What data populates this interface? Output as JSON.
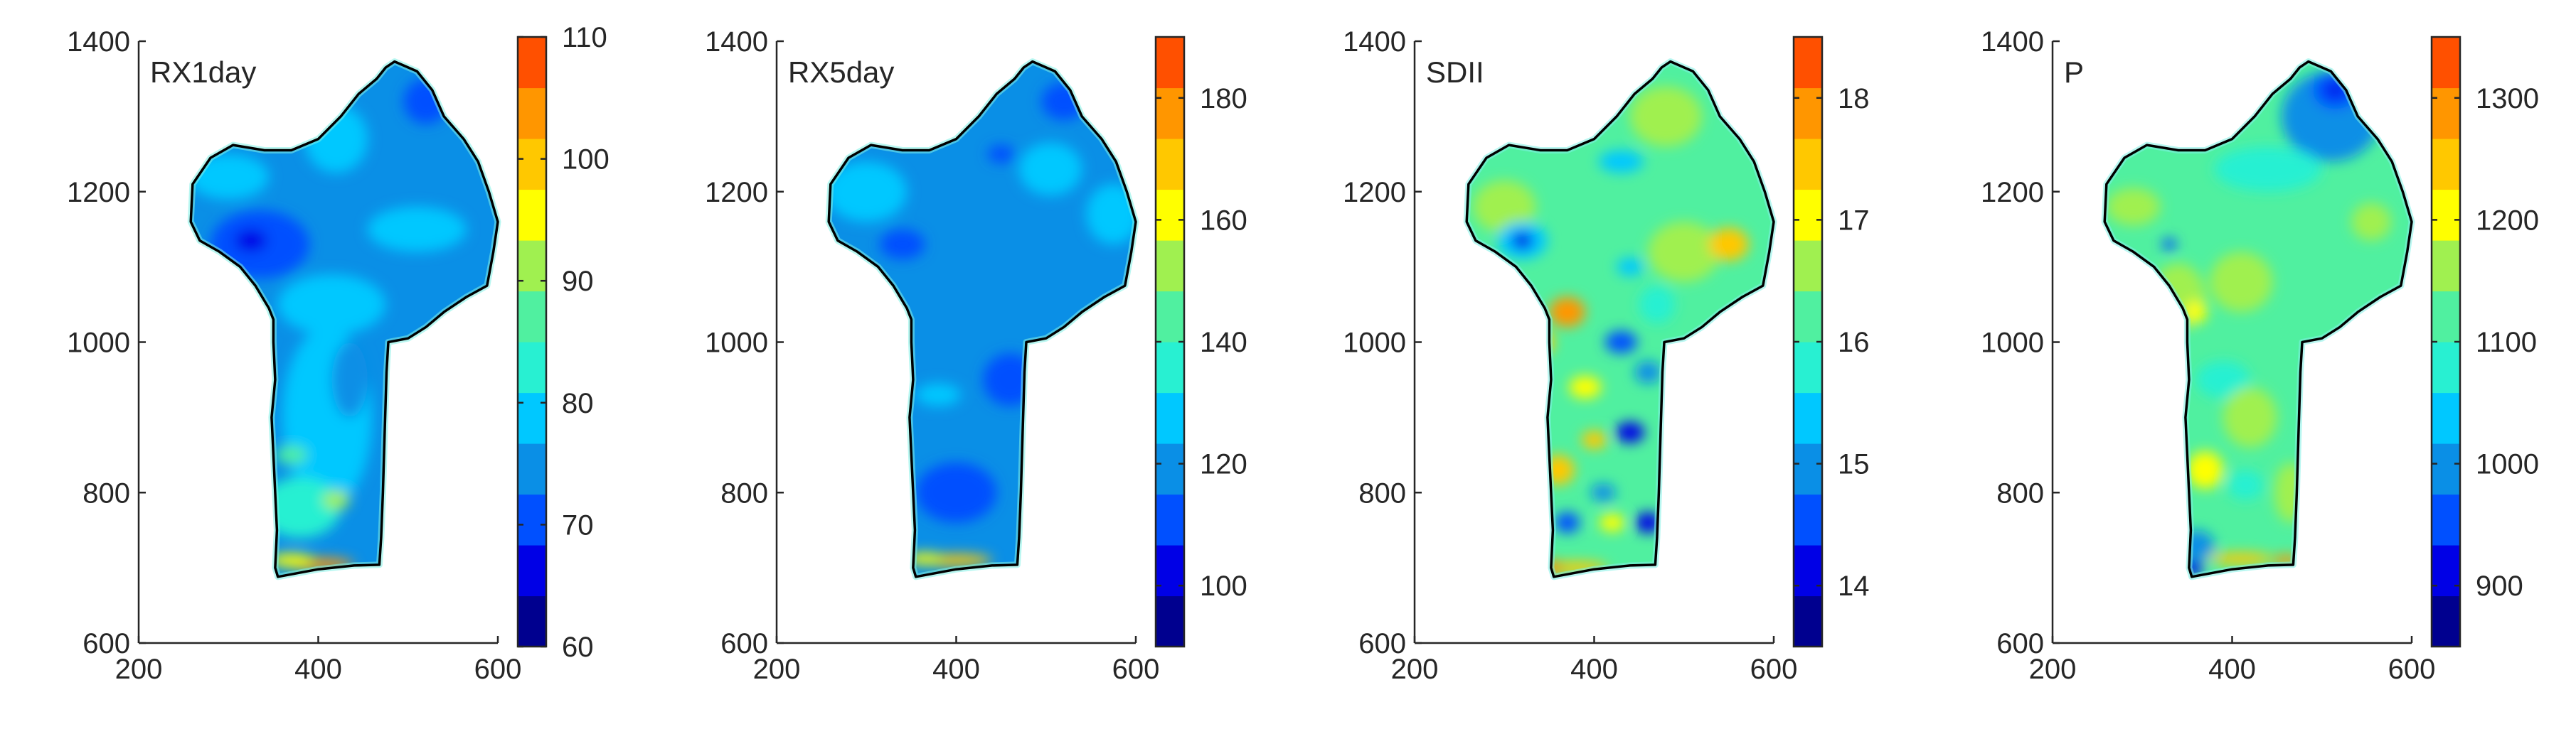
{
  "figure": {
    "panel_count": 4,
    "colormap": [
      "#00008f",
      "#0000e6",
      "#0050ff",
      "#0a8fe6",
      "#00c8ff",
      "#28f0d2",
      "#50f0a0",
      "#a0f050",
      "#ffff00",
      "#ffc800",
      "#ff9600",
      "#ff5000"
    ],
    "outline_color": "#000000",
    "map_fill_base": "#0a8fe6"
  },
  "chart_data": [
    {
      "type": "heatmap",
      "title": "RX1day",
      "xlim": [
        200,
        600
      ],
      "ylim": [
        600,
        1400
      ],
      "xticks": [
        200,
        400,
        600
      ],
      "yticks": [
        600,
        800,
        1000,
        1200,
        1400
      ],
      "xticklabels": [
        "200",
        "400",
        "600"
      ],
      "yticklabels": [
        "600",
        "800",
        "1000",
        "1200",
        "1400"
      ],
      "colorbar": {
        "range": [
          60,
          110
        ],
        "ticks": [
          60,
          70,
          80,
          90,
          100,
          110
        ],
        "ticklabels": [
          "60",
          "70",
          "80",
          "90",
          "100",
          "110"
        ]
      },
      "base_color": "#0a8fe6",
      "blobs": [
        {
          "x": 335,
          "y": 1130,
          "rx": 55,
          "ry": 45,
          "c": "#0050ff"
        },
        {
          "x": 325,
          "y": 1135,
          "rx": 18,
          "ry": 15,
          "c": "#0000e6"
        },
        {
          "x": 300,
          "y": 1220,
          "rx": 45,
          "ry": 30,
          "c": "#00c8ff"
        },
        {
          "x": 420,
          "y": 1270,
          "rx": 35,
          "ry": 45,
          "c": "#00c8ff"
        },
        {
          "x": 510,
          "y": 1150,
          "rx": 55,
          "ry": 30,
          "c": "#00c8ff"
        },
        {
          "x": 520,
          "y": 1320,
          "rx": 25,
          "ry": 30,
          "c": "#0050ff"
        },
        {
          "x": 415,
          "y": 1050,
          "rx": 60,
          "ry": 40,
          "c": "#00c8ff"
        },
        {
          "x": 410,
          "y": 900,
          "rx": 50,
          "ry": 120,
          "c": "#00c8ff"
        },
        {
          "x": 380,
          "y": 780,
          "rx": 45,
          "ry": 40,
          "c": "#28f0d2"
        },
        {
          "x": 370,
          "y": 850,
          "rx": 18,
          "ry": 12,
          "c": "#50f0a0"
        },
        {
          "x": 420,
          "y": 790,
          "rx": 15,
          "ry": 12,
          "c": "#a0f050"
        },
        {
          "x": 400,
          "y": 705,
          "rx": 40,
          "ry": 8,
          "c": "#ff9600"
        },
        {
          "x": 370,
          "y": 710,
          "rx": 25,
          "ry": 9,
          "c": "#ffff00"
        },
        {
          "x": 435,
          "y": 950,
          "rx": 20,
          "ry": 50,
          "c": "#0a8fe6"
        }
      ]
    },
    {
      "type": "heatmap",
      "title": "RX5day",
      "xlim": [
        200,
        600
      ],
      "ylim": [
        600,
        1400
      ],
      "xticks": [
        200,
        400,
        600
      ],
      "yticks": [
        600,
        800,
        1000,
        1200,
        1400
      ],
      "xticklabels": [
        "200",
        "400",
        "600"
      ],
      "yticklabels": [
        "600",
        "800",
        "1000",
        "1200",
        "1400"
      ],
      "colorbar": {
        "range": [
          90,
          190
        ],
        "ticks": [
          100,
          120,
          140,
          160,
          180
        ],
        "ticklabels": [
          "100",
          "120",
          "140",
          "160",
          "180"
        ]
      },
      "base_color": "#0a8fe6",
      "blobs": [
        {
          "x": 300,
          "y": 1200,
          "rx": 45,
          "ry": 40,
          "c": "#00c8ff"
        },
        {
          "x": 340,
          "y": 1130,
          "rx": 25,
          "ry": 20,
          "c": "#0050ff"
        },
        {
          "x": 505,
          "y": 1230,
          "rx": 35,
          "ry": 35,
          "c": "#00c8ff"
        },
        {
          "x": 575,
          "y": 1170,
          "rx": 30,
          "ry": 40,
          "c": "#00c8ff"
        },
        {
          "x": 520,
          "y": 1320,
          "rx": 25,
          "ry": 25,
          "c": "#0050ff"
        },
        {
          "x": 460,
          "y": 950,
          "rx": 30,
          "ry": 35,
          "c": "#0050ff"
        },
        {
          "x": 400,
          "y": 800,
          "rx": 45,
          "ry": 40,
          "c": "#0050ff"
        },
        {
          "x": 380,
          "y": 930,
          "rx": 25,
          "ry": 15,
          "c": "#00c8ff"
        },
        {
          "x": 400,
          "y": 710,
          "rx": 40,
          "ry": 8,
          "c": "#ffc800"
        },
        {
          "x": 365,
          "y": 712,
          "rx": 20,
          "ry": 8,
          "c": "#ffff00"
        },
        {
          "x": 450,
          "y": 1250,
          "rx": 15,
          "ry": 12,
          "c": "#0050ff"
        }
      ]
    },
    {
      "type": "heatmap",
      "title": "SDII",
      "xlim": [
        200,
        600
      ],
      "ylim": [
        600,
        1400
      ],
      "xticks": [
        200,
        400,
        600
      ],
      "yticks": [
        600,
        800,
        1000,
        1200,
        1400
      ],
      "xticklabels": [
        "200",
        "400",
        "600"
      ],
      "yticklabels": [
        "600",
        "800",
        "1000",
        "1200",
        "1400"
      ],
      "colorbar": {
        "range": [
          13.5,
          18.5
        ],
        "ticks": [
          14,
          15,
          16,
          17,
          18
        ],
        "ticklabels": [
          "14",
          "15",
          "16",
          "17",
          "18"
        ]
      },
      "base_color": "#50f0a0",
      "blobs": [
        {
          "x": 480,
          "y": 1300,
          "rx": 40,
          "ry": 40,
          "c": "#a0f050"
        },
        {
          "x": 500,
          "y": 1120,
          "rx": 40,
          "ry": 40,
          "c": "#a0f050"
        },
        {
          "x": 300,
          "y": 1180,
          "rx": 35,
          "ry": 35,
          "c": "#a0f050"
        },
        {
          "x": 320,
          "y": 1135,
          "rx": 28,
          "ry": 25,
          "c": "#00c8ff"
        },
        {
          "x": 320,
          "y": 1135,
          "rx": 12,
          "ry": 12,
          "c": "#0000e6"
        },
        {
          "x": 430,
          "y": 1240,
          "rx": 25,
          "ry": 15,
          "c": "#00c8ff"
        },
        {
          "x": 550,
          "y": 1130,
          "rx": 22,
          "ry": 22,
          "c": "#ffc800"
        },
        {
          "x": 440,
          "y": 1100,
          "rx": 15,
          "ry": 12,
          "c": "#00c8ff"
        },
        {
          "x": 370,
          "y": 1040,
          "rx": 20,
          "ry": 20,
          "c": "#ff9600"
        },
        {
          "x": 340,
          "y": 1000,
          "rx": 15,
          "ry": 18,
          "c": "#ffc800"
        },
        {
          "x": 430,
          "y": 1000,
          "rx": 18,
          "ry": 15,
          "c": "#0050ff"
        },
        {
          "x": 460,
          "y": 960,
          "rx": 15,
          "ry": 15,
          "c": "#0a8fe6"
        },
        {
          "x": 390,
          "y": 940,
          "rx": 18,
          "ry": 15,
          "c": "#ffff00"
        },
        {
          "x": 440,
          "y": 880,
          "rx": 16,
          "ry": 14,
          "c": "#0000e6"
        },
        {
          "x": 400,
          "y": 870,
          "rx": 14,
          "ry": 12,
          "c": "#ffc800"
        },
        {
          "x": 360,
          "y": 830,
          "rx": 18,
          "ry": 20,
          "c": "#ffc800"
        },
        {
          "x": 410,
          "y": 800,
          "rx": 14,
          "ry": 12,
          "c": "#0a8fe6"
        },
        {
          "x": 460,
          "y": 760,
          "rx": 14,
          "ry": 14,
          "c": "#0000e6"
        },
        {
          "x": 370,
          "y": 760,
          "rx": 14,
          "ry": 14,
          "c": "#0050ff"
        },
        {
          "x": 420,
          "y": 760,
          "rx": 14,
          "ry": 12,
          "c": "#ffff00"
        },
        {
          "x": 380,
          "y": 700,
          "rx": 35,
          "ry": 8,
          "c": "#ffc800"
        },
        {
          "x": 350,
          "y": 700,
          "rx": 15,
          "ry": 10,
          "c": "#ff9600"
        },
        {
          "x": 470,
          "y": 1050,
          "rx": 20,
          "ry": 25,
          "c": "#28f0d2"
        }
      ]
    },
    {
      "type": "heatmap",
      "title": "P",
      "xlim": [
        200,
        600
      ],
      "ylim": [
        600,
        1400
      ],
      "xticks": [
        200,
        400,
        600
      ],
      "yticks": [
        600,
        800,
        1000,
        1200,
        1400
      ],
      "xticklabels": [
        "200",
        "400",
        "600"
      ],
      "yticklabels": [
        "600",
        "800",
        "1000",
        "1200",
        "1400"
      ],
      "colorbar": {
        "range": [
          850,
          1350
        ],
        "ticks": [
          900,
          1000,
          1100,
          1200,
          1300
        ],
        "ticklabels": [
          "900",
          "1000",
          "1100",
          "1200",
          "1300"
        ]
      },
      "base_color": "#50f0a0",
      "blobs": [
        {
          "x": 510,
          "y": 1300,
          "rx": 55,
          "ry": 60,
          "c": "#0a8fe6"
        },
        {
          "x": 515,
          "y": 1335,
          "rx": 25,
          "ry": 25,
          "c": "#0050ff"
        },
        {
          "x": 515,
          "y": 1335,
          "rx": 10,
          "ry": 10,
          "c": "#0000e6"
        },
        {
          "x": 440,
          "y": 1230,
          "rx": 60,
          "ry": 30,
          "c": "#28f0d2"
        },
        {
          "x": 290,
          "y": 1180,
          "rx": 30,
          "ry": 25,
          "c": "#a0f050"
        },
        {
          "x": 555,
          "y": 1160,
          "rx": 22,
          "ry": 25,
          "c": "#a0f050"
        },
        {
          "x": 340,
          "y": 1060,
          "rx": 30,
          "ry": 45,
          "c": "#a0f050"
        },
        {
          "x": 360,
          "y": 1040,
          "rx": 12,
          "ry": 15,
          "c": "#ffff00"
        },
        {
          "x": 410,
          "y": 1080,
          "rx": 35,
          "ry": 40,
          "c": "#a0f050"
        },
        {
          "x": 390,
          "y": 950,
          "rx": 30,
          "ry": 25,
          "c": "#28f0d2"
        },
        {
          "x": 420,
          "y": 900,
          "rx": 30,
          "ry": 40,
          "c": "#a0f050"
        },
        {
          "x": 370,
          "y": 830,
          "rx": 20,
          "ry": 25,
          "c": "#ffff00"
        },
        {
          "x": 415,
          "y": 810,
          "rx": 20,
          "ry": 20,
          "c": "#28f0d2"
        },
        {
          "x": 465,
          "y": 800,
          "rx": 18,
          "ry": 40,
          "c": "#a0f050"
        },
        {
          "x": 360,
          "y": 730,
          "rx": 20,
          "ry": 20,
          "c": "#0a8fe6"
        },
        {
          "x": 355,
          "y": 700,
          "rx": 14,
          "ry": 10,
          "c": "#0000e6"
        },
        {
          "x": 410,
          "y": 712,
          "rx": 35,
          "ry": 8,
          "c": "#ffc800"
        },
        {
          "x": 460,
          "y": 710,
          "rx": 15,
          "ry": 7,
          "c": "#ff9600"
        },
        {
          "x": 330,
          "y": 1130,
          "rx": 8,
          "ry": 8,
          "c": "#0050ff"
        }
      ]
    }
  ]
}
